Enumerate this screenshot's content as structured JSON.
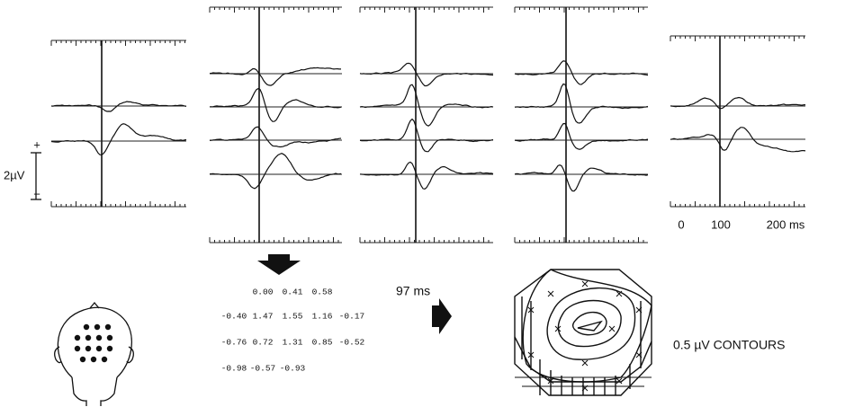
{
  "scale_bar": {
    "label": "2µV",
    "plus": "+",
    "minus": "−"
  },
  "time_axis": {
    "labels": [
      "0",
      "100",
      "200 ms"
    ]
  },
  "latency": "97 ms",
  "table": {
    "rows": [
      [
        "0.00",
        "0.41",
        "0.58"
      ],
      [
        "-0.40",
        "1.47",
        "1.55",
        "1.16",
        "-0.17"
      ],
      [
        "-0.76",
        "0.72",
        "1.31",
        "0.85",
        "-0.52"
      ],
      [
        "-0.98",
        "-0.57",
        "-0.93"
      ]
    ]
  },
  "contour_label": "0.5 µV CONTOURS"
}
